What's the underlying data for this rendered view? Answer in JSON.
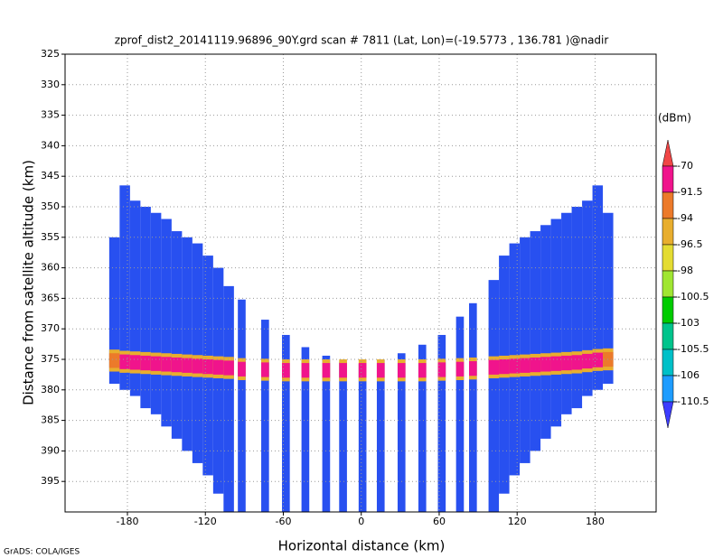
{
  "chart_data": {
    "type": "beam-field",
    "title": "zprof_dist2_20141119.96896_90Y.grd  scan # 7811  (Lat, Lon)=(-19.5773 , 136.781 )@nadir",
    "xlabel": "Horizontal distance (km)",
    "ylabel": "Distance from satellite altitude (km)",
    "xlim": [
      -228,
      227
    ],
    "ylim": [
      325,
      400
    ],
    "xticks": [
      -180,
      -120,
      -60,
      0,
      60,
      120,
      180
    ],
    "yticks": [
      325,
      330,
      335,
      340,
      345,
      350,
      355,
      360,
      365,
      370,
      375,
      380,
      385,
      390,
      395
    ],
    "grid": true,
    "beam_color": "#2850f0",
    "beams": {
      "x": [
        -190,
        -182,
        -174,
        -166,
        -158,
        -150,
        -142,
        -134,
        -126,
        -118,
        -110,
        -102,
        -92,
        -74,
        -58,
        -43,
        -27,
        -14,
        1,
        15,
        31,
        47,
        62,
        76,
        86,
        102,
        110,
        118,
        126,
        134,
        142,
        150,
        158,
        166,
        174,
        182,
        190
      ],
      "width": [
        8,
        8,
        8,
        8,
        8,
        8,
        8,
        8,
        8,
        8,
        8,
        8,
        6,
        6,
        6,
        6,
        6,
        6,
        6,
        6,
        6,
        6,
        6,
        6,
        6,
        8,
        8,
        8,
        8,
        8,
        8,
        8,
        8,
        8,
        8,
        8,
        8
      ],
      "top": [
        355,
        346.5,
        349,
        350,
        351,
        352,
        354,
        355,
        356,
        358,
        360,
        363,
        365.2,
        368.5,
        371,
        373,
        374.4,
        375.4,
        375.7,
        375.1,
        374,
        372.6,
        371,
        368,
        365.8,
        362,
        358,
        356,
        355,
        354,
        353,
        352,
        351,
        350,
        349,
        346.5,
        351
      ],
      "bottom": [
        379,
        380,
        381,
        383,
        384,
        386,
        388,
        390,
        392,
        394,
        397,
        400,
        400,
        400,
        400,
        400,
        400,
        400,
        400,
        400,
        400,
        400,
        400,
        400,
        400,
        400,
        397,
        394,
        392,
        390,
        388,
        386,
        384,
        383,
        381,
        380,
        379
      ],
      "band_center": [
        375.2,
        375.4,
        375.5,
        375.6,
        375.7,
        375.8,
        375.9,
        376,
        376.1,
        376.2,
        376.3,
        376.4,
        376.6,
        376.7,
        376.8,
        376.8,
        376.8,
        376.8,
        376.8,
        376.8,
        376.8,
        376.8,
        376.7,
        376.6,
        376.5,
        376.3,
        376.2,
        376.1,
        376,
        375.9,
        375.8,
        375.7,
        375.6,
        375.5,
        375.3,
        375.1,
        375
      ],
      "band": [
        -93,
        -80,
        -80,
        -80,
        -80,
        -80,
        -80,
        -80,
        -80,
        -80,
        -80,
        -80,
        -80,
        -80,
        -80,
        -80,
        -80,
        -80,
        -80,
        -80,
        -80,
        -80,
        -80,
        -80,
        -80,
        -80,
        -80,
        -80,
        -80,
        -80,
        -80,
        -80,
        -80,
        -80,
        -80,
        -80,
        -93
      ]
    },
    "colorbar": {
      "unit": "(dBm)",
      "levels": [
        -70,
        -91.5,
        -94,
        -96.5,
        -98,
        -100.5,
        -103,
        -105.5,
        -106,
        -110.5
      ],
      "colors": [
        "#f04646",
        "#f0148c",
        "#ec7a2a",
        "#e8ae2e",
        "#e4dc32",
        "#a0e632",
        "#00cc00",
        "#00c48c",
        "#00c0c8",
        "#1e9cff",
        "#3c3cff"
      ]
    }
  },
  "footer": "GrADS: COLA/IGES"
}
